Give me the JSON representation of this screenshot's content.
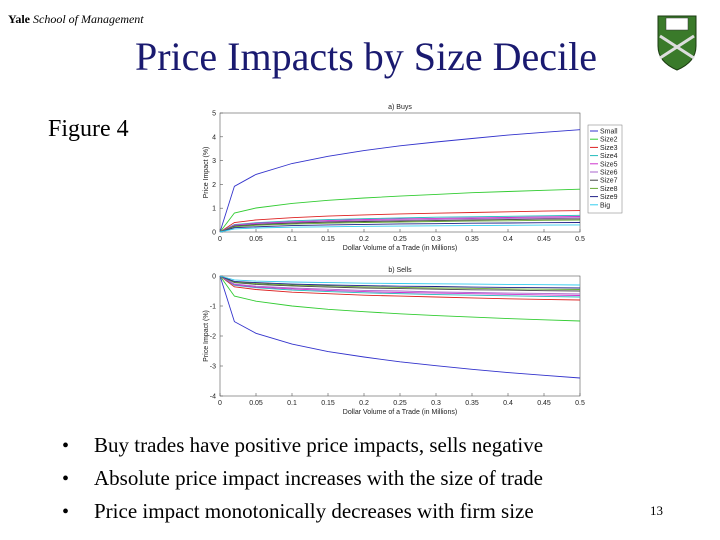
{
  "header": {
    "brand": "Yale",
    "school": "School of Management"
  },
  "title": "Price Impacts by Size Decile",
  "figure_label": "Figure 4",
  "bullets": [
    "Buy trades have positive price impacts, sells negative",
    "Absolute price impact increases with the size of trade",
    "Price impact monotonically decreases with firm size"
  ],
  "page_number": "13",
  "chart_data": [
    {
      "type": "line",
      "title": "a) Buys",
      "xlabel": "Dollar Volume of a Trade (in Millions)",
      "ylabel": "Price Impact (%)",
      "x": [
        0,
        0.02,
        0.05,
        0.1,
        0.15,
        0.2,
        0.25,
        0.3,
        0.35,
        0.4,
        0.45,
        0.5
      ],
      "xlim": [
        0,
        0.5
      ],
      "xticks": [
        0,
        0.05,
        0.1,
        0.15,
        0.2,
        0.25,
        0.3,
        0.35,
        0.4,
        0.45,
        0.5
      ],
      "ylim": [
        0,
        5
      ],
      "yticks": [
        0,
        1,
        2,
        3,
        4,
        5
      ],
      "legend": "right",
      "series": [
        {
          "name": "Small",
          "color": "#3333cc",
          "values": [
            0,
            1.92,
            2.42,
            2.88,
            3.18,
            3.42,
            3.62,
            3.78,
            3.93,
            4.07,
            4.19,
            4.3
          ]
        },
        {
          "name": "Size2",
          "color": "#33cc33",
          "values": [
            0,
            0.8,
            1.01,
            1.2,
            1.33,
            1.43,
            1.51,
            1.58,
            1.65,
            1.7,
            1.75,
            1.8
          ]
        },
        {
          "name": "Size3",
          "color": "#dd2222",
          "values": [
            0,
            0.4,
            0.51,
            0.6,
            0.67,
            0.72,
            0.76,
            0.79,
            0.82,
            0.85,
            0.88,
            0.9
          ]
        },
        {
          "name": "Size4",
          "color": "#22bbbb",
          "values": [
            0,
            0.31,
            0.39,
            0.47,
            0.52,
            0.56,
            0.59,
            0.62,
            0.64,
            0.66,
            0.68,
            0.7
          ]
        },
        {
          "name": "Size5",
          "color": "#cc33cc",
          "values": [
            0,
            0.29,
            0.37,
            0.43,
            0.48,
            0.52,
            0.55,
            0.57,
            0.59,
            0.61,
            0.63,
            0.65
          ]
        },
        {
          "name": "Size6",
          "color": "#aa66cc",
          "values": [
            0,
            0.27,
            0.34,
            0.4,
            0.44,
            0.48,
            0.5,
            0.53,
            0.55,
            0.57,
            0.58,
            0.6
          ]
        },
        {
          "name": "Size7",
          "color": "#444444",
          "values": [
            0,
            0.25,
            0.31,
            0.37,
            0.41,
            0.44,
            0.46,
            0.48,
            0.5,
            0.52,
            0.54,
            0.55
          ]
        },
        {
          "name": "Size8",
          "color": "#66aa33",
          "values": [
            0,
            0.22,
            0.28,
            0.33,
            0.37,
            0.4,
            0.42,
            0.44,
            0.46,
            0.47,
            0.49,
            0.5
          ]
        },
        {
          "name": "Size9",
          "color": "#222288",
          "values": [
            0,
            0.18,
            0.22,
            0.27,
            0.3,
            0.32,
            0.34,
            0.35,
            0.37,
            0.38,
            0.39,
            0.4
          ]
        },
        {
          "name": "Big",
          "color": "#33ccee",
          "values": [
            0,
            0.13,
            0.17,
            0.2,
            0.22,
            0.24,
            0.25,
            0.26,
            0.27,
            0.28,
            0.29,
            0.3
          ]
        }
      ]
    },
    {
      "type": "line",
      "title": "b) Sells",
      "xlabel": "Dollar Volume of a Trade (in Millions)",
      "ylabel": "Price Impact (%)",
      "x": [
        0,
        0.02,
        0.05,
        0.1,
        0.15,
        0.2,
        0.25,
        0.3,
        0.35,
        0.4,
        0.45,
        0.5
      ],
      "xlim": [
        0,
        0.5
      ],
      "xticks": [
        0,
        0.05,
        0.1,
        0.15,
        0.2,
        0.25,
        0.3,
        0.35,
        0.4,
        0.45,
        0.5
      ],
      "ylim": [
        -4,
        0
      ],
      "yticks": [
        -4,
        -3,
        -2,
        -1,
        0
      ],
      "series": [
        {
          "color": "#3333cc",
          "values": [
            0,
            -1.52,
            -1.91,
            -2.27,
            -2.52,
            -2.7,
            -2.86,
            -2.99,
            -3.11,
            -3.22,
            -3.31,
            -3.4
          ]
        },
        {
          "color": "#33cc33",
          "values": [
            0,
            -0.67,
            -0.84,
            -1.0,
            -1.11,
            -1.19,
            -1.26,
            -1.32,
            -1.37,
            -1.42,
            -1.46,
            -1.5
          ]
        },
        {
          "color": "#dd2222",
          "values": [
            0,
            -0.36,
            -0.45,
            -0.54,
            -0.59,
            -0.64,
            -0.67,
            -0.7,
            -0.73,
            -0.76,
            -0.78,
            -0.8
          ]
        },
        {
          "color": "#22bbbb",
          "values": [
            0,
            -0.31,
            -0.39,
            -0.47,
            -0.52,
            -0.56,
            -0.59,
            -0.62,
            -0.64,
            -0.66,
            -0.68,
            -0.7
          ]
        },
        {
          "color": "#cc33cc",
          "values": [
            0,
            -0.29,
            -0.37,
            -0.43,
            -0.48,
            -0.52,
            -0.55,
            -0.57,
            -0.59,
            -0.61,
            -0.63,
            -0.65
          ]
        },
        {
          "color": "#aa66cc",
          "values": [
            0,
            -0.27,
            -0.34,
            -0.4,
            -0.44,
            -0.48,
            -0.5,
            -0.53,
            -0.55,
            -0.57,
            -0.58,
            -0.6
          ]
        },
        {
          "color": "#444444",
          "values": [
            0,
            -0.22,
            -0.28,
            -0.33,
            -0.37,
            -0.4,
            -0.42,
            -0.44,
            -0.46,
            -0.47,
            -0.49,
            -0.5
          ]
        },
        {
          "color": "#66aa33",
          "values": [
            0,
            -0.2,
            -0.25,
            -0.3,
            -0.33,
            -0.36,
            -0.38,
            -0.4,
            -0.41,
            -0.43,
            -0.44,
            -0.45
          ]
        },
        {
          "color": "#222288",
          "values": [
            0,
            -0.18,
            -0.22,
            -0.27,
            -0.3,
            -0.32,
            -0.34,
            -0.35,
            -0.37,
            -0.38,
            -0.39,
            -0.4
          ]
        },
        {
          "color": "#33ccee",
          "values": [
            0,
            -0.13,
            -0.17,
            -0.2,
            -0.22,
            -0.24,
            -0.25,
            -0.26,
            -0.27,
            -0.28,
            -0.29,
            -0.3
          ]
        }
      ]
    }
  ]
}
